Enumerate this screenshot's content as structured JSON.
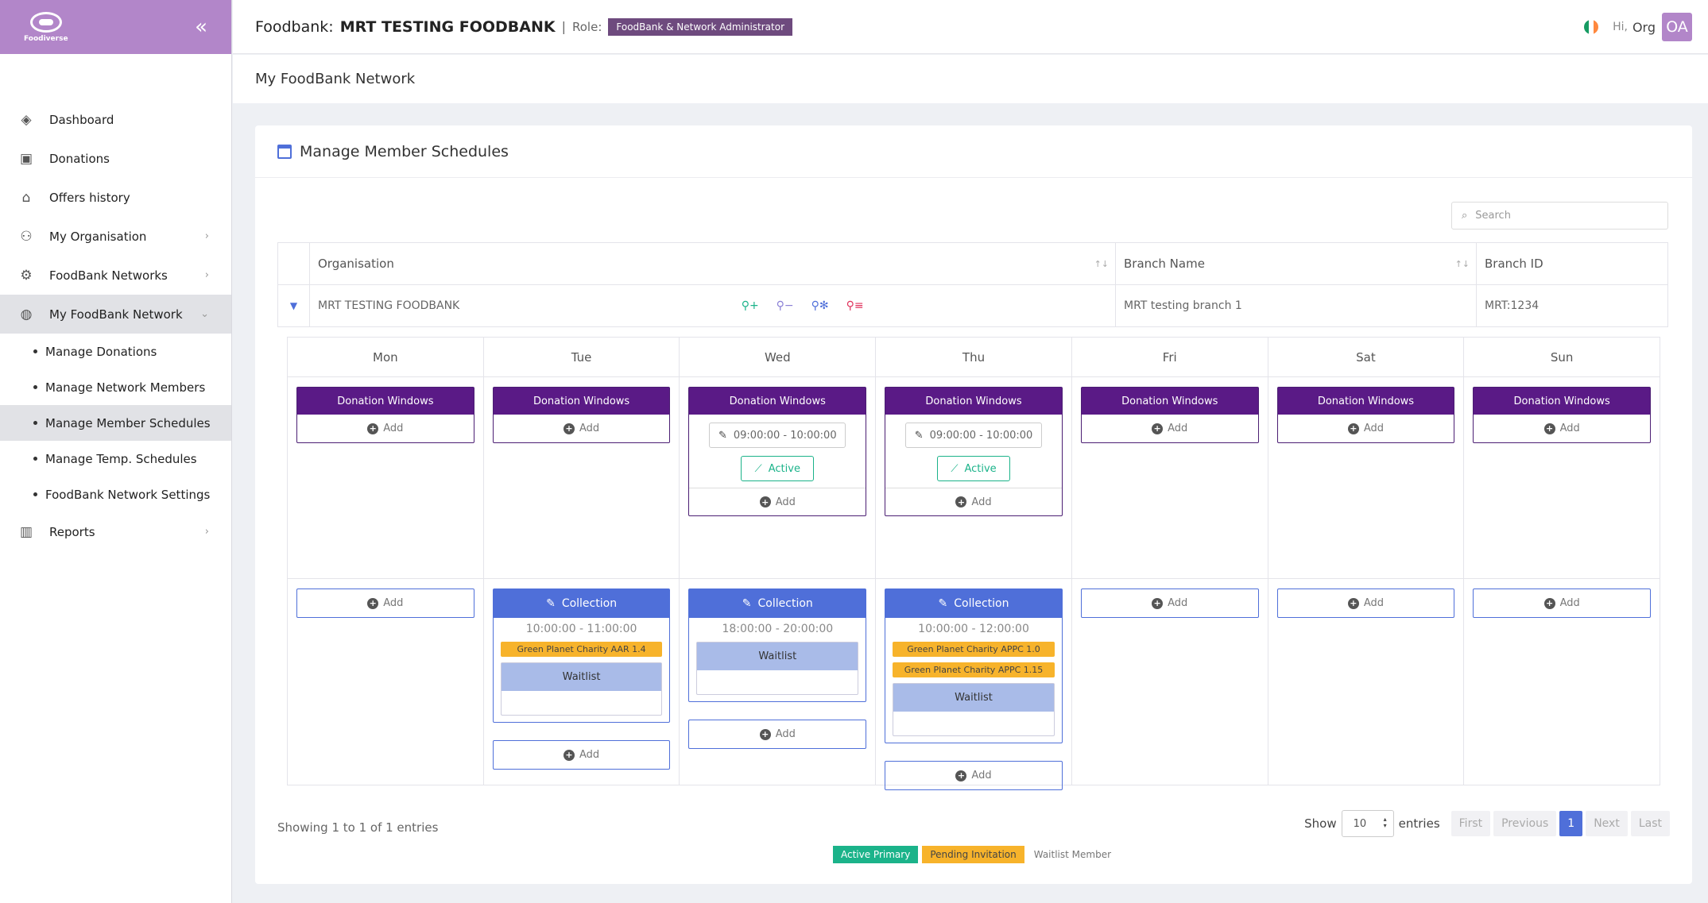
{
  "sidebar": {
    "logo_text": "Foodiverse",
    "items": [
      {
        "label": "Dashboard",
        "icon": "layers-icon"
      },
      {
        "label": "Donations",
        "icon": "box-icon"
      },
      {
        "label": "Offers history",
        "icon": "cart-icon"
      },
      {
        "label": "My Organisation",
        "icon": "org-icon"
      },
      {
        "label": "FoodBank Networks",
        "icon": "network-icon"
      },
      {
        "label": "My FoodBank Network",
        "icon": "globe-icon"
      },
      {
        "label": "Reports",
        "icon": "chart-icon"
      }
    ],
    "subitems": [
      "Manage Donations",
      "Manage Network Members",
      "Manage Member Schedules",
      "Manage Temp. Schedules",
      "FoodBank Network Settings"
    ]
  },
  "header": {
    "label": "Foodbank:",
    "foodbank_name": "MRT TESTING FOODBANK",
    "separator": "|",
    "role_label": "Role:",
    "role_badge": "FoodBank & Network Administrator",
    "greeting": "Hi,",
    "user_name": "Org",
    "avatar_initials": "OA",
    "flag_colors": [
      "#169b62",
      "#ffffff",
      "#ff883e"
    ]
  },
  "subheader": {
    "title": "My FoodBank Network"
  },
  "card": {
    "title": "Manage Member Schedules",
    "search_placeholder": "Search"
  },
  "table": {
    "columns": [
      "Organisation",
      "Branch Name",
      "Branch ID"
    ],
    "row": {
      "organisation": "MRT TESTING FOODBANK",
      "branch_name": "MRT testing branch 1",
      "branch_id": "MRT:1234"
    }
  },
  "schedule": {
    "donation_windows_label": "Donation Windows",
    "add_label": "Add",
    "collection_label": "Collection",
    "waitlist_label": "Waitlist",
    "active_label": "Active",
    "days": [
      {
        "name": "Mon",
        "windows": [],
        "collections": []
      },
      {
        "name": "Tue",
        "windows": [],
        "collections": [
          {
            "time": "10:00:00 - 11:00:00",
            "members": [
              "Green Planet Charity AAR 1.4"
            ]
          }
        ]
      },
      {
        "name": "Wed",
        "windows": [
          {
            "time": "09:00:00 - 10:00:00"
          }
        ],
        "collections": [
          {
            "time": "18:00:00 - 20:00:00",
            "members": []
          }
        ]
      },
      {
        "name": "Thu",
        "windows": [
          {
            "time": "09:00:00 - 10:00:00"
          }
        ],
        "collections": [
          {
            "time": "10:00:00 - 12:00:00",
            "members": [
              "Green Planet Charity APPC 1.0",
              "Green Planet Charity APPC 1.15"
            ]
          }
        ]
      },
      {
        "name": "Fri",
        "windows": [],
        "collections": []
      },
      {
        "name": "Sat",
        "windows": [],
        "collections": []
      },
      {
        "name": "Sun",
        "windows": [],
        "collections": []
      }
    ]
  },
  "footer": {
    "showing": "Showing 1 to 1 of 1 entries",
    "show_label": "Show",
    "page_size": "10",
    "entries_label": "entries",
    "pager": [
      "First",
      "Previous",
      "1",
      "Next",
      "Last"
    ],
    "legend": [
      "Active Primary",
      "Pending Invitation",
      "Waitlist Member"
    ]
  }
}
